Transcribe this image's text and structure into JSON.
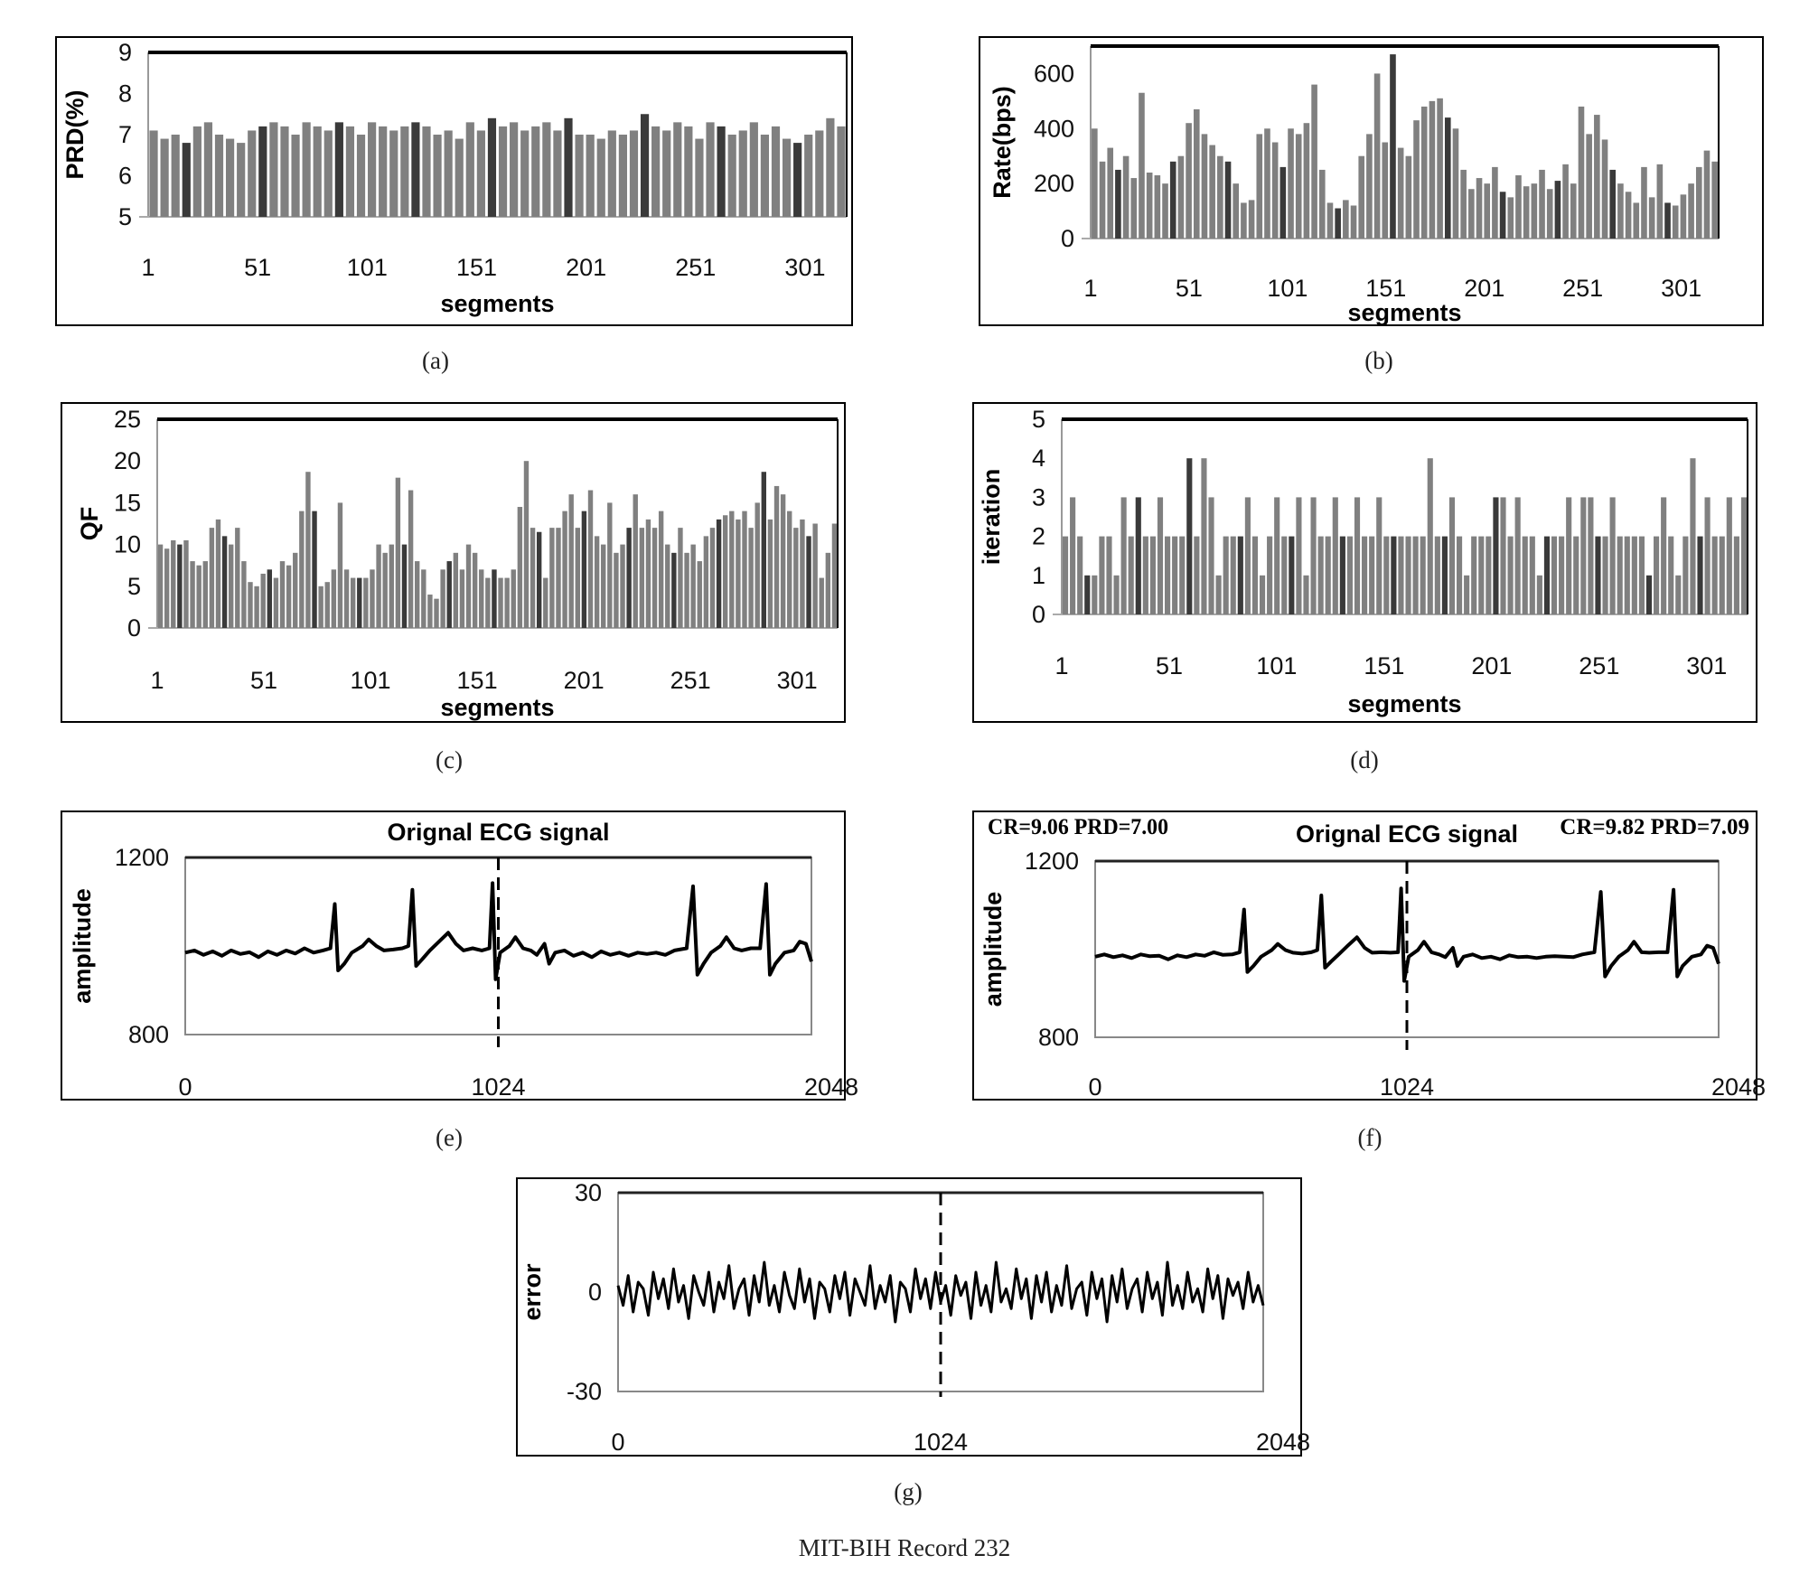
{
  "figure": {
    "caption": "MIT-BIH Record 232",
    "panel_labels": [
      "(a)",
      "(b)",
      "(c)",
      "(d)",
      "(e)",
      "(f)",
      "(g)"
    ],
    "bar_color": "#808080",
    "line_color": "#000000"
  },
  "chart_data": [
    {
      "type": "bar",
      "ylabel": "PRD(%)",
      "xlabel": "segments",
      "ylim": [
        5,
        9
      ],
      "yticks": [
        "5",
        "6",
        "7",
        "8",
        "9"
      ],
      "xlim": [
        1,
        320
      ],
      "xticks": [
        "1",
        "51",
        "101",
        "151",
        "201",
        "251",
        "301"
      ],
      "values": [
        7.1,
        6.9,
        7.0,
        6.8,
        7.2,
        7.3,
        7.0,
        6.9,
        6.8,
        7.1,
        7.2,
        7.3,
        7.2,
        7.0,
        7.3,
        7.2,
        7.1,
        7.3,
        7.2,
        7.0,
        7.3,
        7.2,
        7.1,
        7.2,
        7.3,
        7.2,
        7.0,
        7.1,
        6.9,
        7.3,
        7.1,
        7.4,
        7.2,
        7.3,
        7.1,
        7.2,
        7.3,
        7.1,
        7.4,
        7.0,
        7.0,
        6.9,
        7.1,
        7.0,
        7.1,
        7.5,
        7.2,
        7.1,
        7.3,
        7.2,
        6.9,
        7.3,
        7.2,
        7.0,
        7.1,
        7.3,
        7.0,
        7.2,
        6.9,
        6.8,
        7.0,
        7.1,
        7.4,
        7.2
      ]
    },
    {
      "type": "bar",
      "ylabel": "Rate(bps)",
      "xlabel": "segments",
      "ylim": [
        0,
        700
      ],
      "yticks": [
        "0",
        "200",
        "400",
        "600"
      ],
      "xlim": [
        1,
        320
      ],
      "xticks": [
        "1",
        "51",
        "101",
        "151",
        "201",
        "251",
        "301"
      ],
      "values": [
        400,
        280,
        330,
        250,
        300,
        220,
        530,
        240,
        230,
        200,
        280,
        300,
        420,
        470,
        380,
        340,
        300,
        280,
        200,
        130,
        140,
        380,
        400,
        350,
        260,
        400,
        380,
        420,
        560,
        250,
        130,
        110,
        140,
        120,
        300,
        380,
        600,
        350,
        670,
        330,
        300,
        430,
        480,
        500,
        510,
        440,
        400,
        250,
        180,
        220,
        200,
        260,
        170,
        150,
        230,
        190,
        200,
        250,
        180,
        210,
        270,
        200,
        480,
        380,
        450,
        360,
        250,
        200,
        170,
        130,
        260,
        150,
        270,
        130,
        120,
        160,
        200,
        260,
        320,
        280
      ]
    },
    {
      "type": "bar",
      "ylabel": "QF",
      "xlabel": "segments",
      "ylim": [
        0,
        25
      ],
      "yticks": [
        "0",
        "5",
        "10",
        "15",
        "20",
        "25"
      ],
      "xlim": [
        1,
        320
      ],
      "xticks": [
        "1",
        "51",
        "101",
        "151",
        "201",
        "251",
        "301"
      ],
      "values": [
        10,
        9.5,
        10.5,
        10,
        10.5,
        8,
        7.5,
        8,
        12,
        13,
        11,
        10,
        12,
        8,
        5.5,
        5,
        6.5,
        7,
        6,
        8,
        7.5,
        9,
        14,
        18.7,
        14,
        5,
        5.5,
        7,
        15,
        7,
        6,
        6,
        6,
        7,
        10,
        9,
        10,
        18,
        10,
        16.5,
        8,
        7,
        4,
        3.5,
        7,
        8,
        9,
        7,
        10,
        9,
        7,
        6,
        7,
        6,
        6,
        7,
        14.5,
        20,
        12,
        11.5,
        6,
        12,
        12,
        14,
        16,
        12,
        14,
        16.5,
        11,
        10,
        15,
        9,
        10,
        12,
        16,
        12,
        13,
        12,
        14,
        10,
        9,
        12,
        9,
        10,
        8,
        11,
        12,
        13,
        13.5,
        14,
        13,
        14,
        12,
        15,
        18.7,
        13,
        17,
        16,
        14,
        12,
        13,
        11,
        12.5,
        6,
        9,
        12.5
      ]
    },
    {
      "type": "bar",
      "ylabel": "iteration",
      "xlabel": "segments",
      "ylim": [
        0,
        5
      ],
      "yticks": [
        "0",
        "1",
        "2",
        "3",
        "4",
        "5"
      ],
      "xlim": [
        1,
        320
      ],
      "xticks": [
        "1",
        "51",
        "101",
        "151",
        "201",
        "251",
        "301"
      ],
      "values": [
        2,
        3,
        2,
        1,
        1,
        2,
        2,
        1,
        3,
        2,
        3,
        2,
        2,
        3,
        2,
        2,
        2,
        4,
        2,
        4,
        3,
        1,
        2,
        2,
        2,
        3,
        2,
        1,
        2,
        3,
        2,
        2,
        3,
        1,
        3,
        2,
        2,
        3,
        2,
        2,
        3,
        2,
        2,
        3,
        2,
        2,
        2,
        2,
        2,
        2,
        4,
        2,
        2,
        3,
        2,
        1,
        2,
        2,
        2,
        3,
        3,
        2,
        3,
        2,
        2,
        1,
        2,
        2,
        2,
        3,
        2,
        3,
        3,
        2,
        2,
        3,
        2,
        2,
        2,
        2,
        1,
        2,
        3,
        2,
        1,
        2,
        4,
        2,
        3,
        2,
        2,
        3,
        2,
        3
      ]
    },
    {
      "type": "line",
      "title": "Orignal ECG signal",
      "ylabel": "amplitude",
      "xlabel": "",
      "ylim": [
        800,
        1200
      ],
      "yticks": [
        "800",
        "1200"
      ],
      "xlim": [
        0,
        2048
      ],
      "xticks": [
        "0",
        "1024",
        "2048"
      ],
      "marker_line_x": 1024,
      "x": [
        0,
        30,
        60,
        90,
        120,
        150,
        180,
        210,
        240,
        270,
        300,
        330,
        360,
        390,
        420,
        450,
        475,
        489,
        500,
        520,
        545,
        580,
        600,
        625,
        650,
        680,
        710,
        730,
        743,
        755,
        775,
        800,
        830,
        860,
        885,
        910,
        940,
        970,
        995,
        1005,
        1015,
        1030,
        1060,
        1080,
        1105,
        1130,
        1150,
        1175,
        1190,
        1210,
        1240,
        1270,
        1300,
        1330,
        1360,
        1390,
        1420,
        1450,
        1480,
        1510,
        1540,
        1570,
        1600,
        1640,
        1661,
        1675,
        1695,
        1720,
        1750,
        1770,
        1795,
        1820,
        1850,
        1880,
        1900,
        1912,
        1930,
        1960,
        1990,
        2010,
        2030,
        2048
      ],
      "y": [
        985,
        990,
        980,
        988,
        978,
        990,
        982,
        986,
        975,
        988,
        980,
        990,
        983,
        995,
        985,
        990,
        995,
        1095,
        945,
        960,
        985,
        1000,
        1015,
        1000,
        990,
        992,
        995,
        1000,
        1127,
        955,
        970,
        990,
        1010,
        1030,
        1005,
        990,
        995,
        990,
        995,
        1142,
        925,
        985,
        1000,
        1020,
        995,
        990,
        980,
        1005,
        960,
        985,
        990,
        978,
        985,
        975,
        988,
        980,
        985,
        978,
        985,
        982,
        985,
        980,
        990,
        995,
        1135,
        935,
        960,
        985,
        1000,
        1020,
        995,
        990,
        995,
        995,
        1140,
        935,
        960,
        985,
        990,
        1010,
        1005,
        965
      ]
    },
    {
      "type": "line",
      "title": "Orignal ECG signal",
      "annotations": [
        "CR=9.06 PRD=7.00",
        "CR=9.82 PRD=7.09"
      ],
      "ylabel": "amplitude",
      "xlabel": "",
      "ylim": [
        800,
        1200
      ],
      "yticks": [
        "800",
        "1200"
      ],
      "xlim": [
        0,
        2048
      ],
      "xticks": [
        "0",
        "1024",
        "2048"
      ],
      "marker_line_x": 1024,
      "x": [
        0,
        30,
        60,
        90,
        120,
        150,
        180,
        210,
        240,
        270,
        300,
        330,
        360,
        390,
        420,
        450,
        475,
        489,
        500,
        520,
        545,
        580,
        600,
        625,
        650,
        680,
        710,
        730,
        743,
        755,
        775,
        800,
        830,
        860,
        885,
        910,
        940,
        970,
        995,
        1005,
        1015,
        1030,
        1060,
        1080,
        1105,
        1130,
        1150,
        1175,
        1190,
        1210,
        1240,
        1270,
        1300,
        1330,
        1360,
        1390,
        1420,
        1450,
        1480,
        1510,
        1540,
        1570,
        1600,
        1640,
        1661,
        1675,
        1695,
        1720,
        1750,
        1770,
        1795,
        1820,
        1850,
        1880,
        1900,
        1912,
        1930,
        1960,
        1990,
        2010,
        2030,
        2048
      ],
      "y": [
        983,
        988,
        982,
        986,
        980,
        988,
        984,
        985,
        977,
        986,
        982,
        988,
        985,
        993,
        987,
        988,
        993,
        1090,
        948,
        962,
        983,
        998,
        1012,
        998,
        992,
        990,
        993,
        998,
        1122,
        958,
        972,
        988,
        1008,
        1027,
        1003,
        992,
        993,
        992,
        993,
        1138,
        928,
        983,
        998,
        1017,
        993,
        988,
        982,
        1003,
        962,
        983,
        988,
        980,
        983,
        977,
        986,
        982,
        983,
        980,
        983,
        984,
        983,
        982,
        988,
        993,
        1130,
        938,
        962,
        983,
        998,
        1017,
        993,
        992,
        993,
        993,
        1135,
        938,
        962,
        983,
        988,
        1008,
        1003,
        967
      ]
    },
    {
      "type": "line",
      "ylabel": "error",
      "xlabel": "",
      "ylim": [
        -30,
        30
      ],
      "yticks": [
        "-30",
        "0",
        "30"
      ],
      "xlim": [
        0,
        2048
      ],
      "xticks": [
        "0",
        "1024",
        "2048"
      ],
      "marker_line_x": 1024,
      "y": [
        2,
        -4,
        5,
        -6,
        3,
        1,
        -7,
        6,
        -2,
        4,
        -5,
        7,
        -3,
        2,
        -8,
        5,
        0,
        -4,
        6,
        -6,
        3,
        -2,
        8,
        -5,
        1,
        4,
        -7,
        5,
        -3,
        9,
        -4,
        2,
        -6,
        6,
        -1,
        -5,
        7,
        -3,
        4,
        -8,
        3,
        1,
        -6,
        5,
        -2,
        6,
        -7,
        4,
        0,
        -4,
        8,
        -5,
        2,
        -3,
        5,
        -9,
        3,
        1,
        -6,
        7,
        -2,
        4,
        -5,
        6,
        -3,
        2,
        -7,
        5,
        -1,
        3,
        -8,
        6,
        -4,
        2,
        -6,
        9,
        -3,
        1,
        -5,
        7,
        -2,
        4,
        -8,
        5,
        -3,
        6,
        -6,
        2,
        -4,
        8,
        -5,
        1,
        3,
        -7,
        6,
        -2,
        4,
        -9,
        5,
        -3,
        7,
        -5,
        1,
        4,
        -6,
        6,
        -2,
        3,
        -7,
        9,
        -4,
        2,
        -5,
        6,
        -3,
        1,
        -6,
        7,
        -2,
        5,
        -8,
        4,
        -1,
        3,
        -5,
        6,
        -3,
        2,
        -4
      ]
    }
  ]
}
